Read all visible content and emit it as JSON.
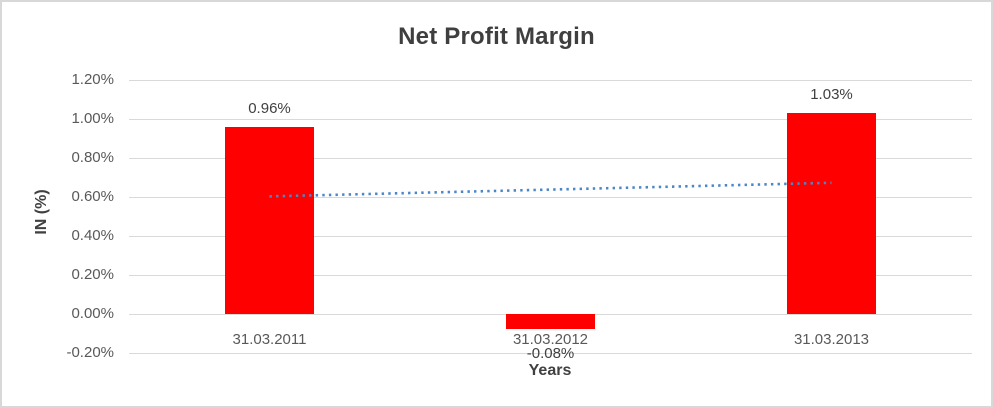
{
  "chart_data": {
    "type": "bar",
    "title": "Net Profit Margin",
    "xlabel": "Years",
    "ylabel": "IN (%)",
    "categories": [
      "31.03.2011",
      "31.03.2012",
      "31.03.2013"
    ],
    "values": [
      0.96,
      -0.08,
      1.03
    ],
    "data_labels": [
      "0.96%",
      "-0.08%",
      "1.03%"
    ],
    "yticks": [
      {
        "value": 1.2,
        "label": "1.20%"
      },
      {
        "value": 1.0,
        "label": "1.00%"
      },
      {
        "value": 0.8,
        "label": "0.80%"
      },
      {
        "value": 0.6,
        "label": "0.60%"
      },
      {
        "value": 0.4,
        "label": "0.40%"
      },
      {
        "value": 0.2,
        "label": "0.20%"
      },
      {
        "value": 0.0,
        "label": "0.00%"
      },
      {
        "value": -0.2,
        "label": "-0.20%"
      }
    ],
    "ylim": [
      -0.2,
      1.2
    ],
    "grid": true,
    "legend": "none",
    "bar_color": "#ff0000",
    "gridline_color": "#d9d9d9",
    "title_color": "#3f3f3f",
    "tick_color": "#595959",
    "data_label_color": "#404040",
    "trendline": {
      "style": "dotted",
      "color": "#4a86c8",
      "start_value": 0.602,
      "end_value": 0.672
    }
  }
}
